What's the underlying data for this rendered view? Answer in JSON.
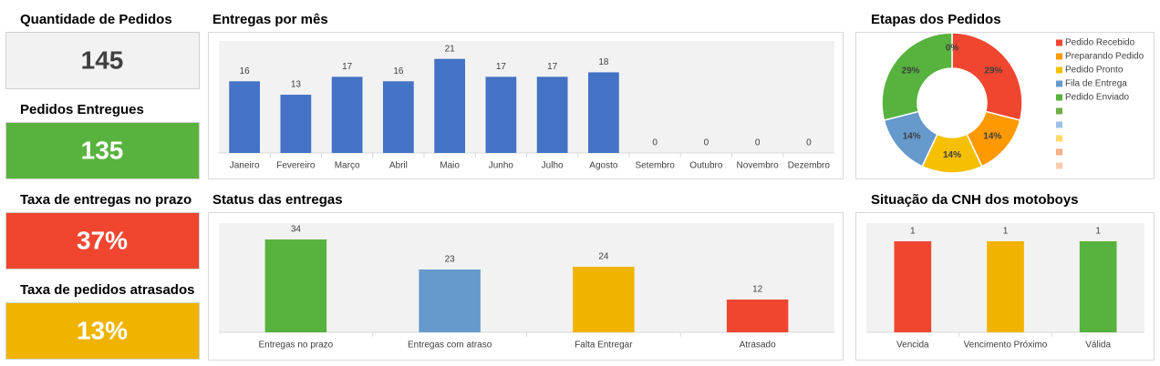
{
  "kpis": [
    {
      "title": "Quantidade de Pedidos",
      "value": "145",
      "color": "#f2f2f2",
      "text_color": "#404040"
    },
    {
      "title": "Pedidos Entregues",
      "value": "135",
      "color": "#57b33e",
      "text_color": "#ffffff"
    },
    {
      "title": "Taxa de entregas no prazo",
      "value": "37%",
      "color": "#f04630",
      "text_color": "#ffffff"
    },
    {
      "title": "Taxa de pedidos atrasados",
      "value": "13%",
      "color": "#f0b400",
      "text_color": "#ffffff"
    }
  ],
  "chart_data": [
    {
      "type": "bar",
      "title": "Entregas por mês",
      "categories": [
        "Janeiro",
        "Fevereiro",
        "Março",
        "Abril",
        "Maio",
        "Junho",
        "Julho",
        "Agosto",
        "Setembro",
        "Outubro",
        "Novembro",
        "Dezembro"
      ],
      "values": [
        16,
        13,
        17,
        16,
        21,
        17,
        17,
        18,
        0,
        0,
        0,
        0
      ],
      "color": "#4472c4",
      "ylim": [
        0,
        25
      ]
    },
    {
      "type": "pie",
      "title": "Etapas dos Pedidos",
      "categories": [
        "Pedido Recebido",
        "Preparando Pedido",
        "Pedido Pronto",
        "Fila de Entrega",
        "Pedido Enviado",
        null,
        null,
        null,
        null,
        null
      ],
      "values": [
        29,
        14,
        14,
        14,
        29,
        0,
        0,
        0,
        0,
        0
      ],
      "value_labels": [
        "29%",
        "14%",
        "14%",
        "14%",
        "29%",
        "0%",
        null,
        null,
        null,
        null
      ],
      "colors": [
        "#f04630",
        "#ff9900",
        "#f5c000",
        "#6699cc",
        "#57b33e",
        "#70ad47",
        "#9dc3e6",
        "#ffd966",
        "#f4b183",
        "#f8cbad"
      ]
    },
    {
      "type": "bar",
      "title": "Status das entregas",
      "categories": [
        "Entregas no prazo",
        "Entregas com atraso",
        "Falta Entregar",
        "Atrasado"
      ],
      "values": [
        34,
        23,
        24,
        12
      ],
      "colors": [
        "#57b33e",
        "#6699cc",
        "#f0b400",
        "#f04630"
      ],
      "ylim": [
        0,
        40
      ]
    },
    {
      "type": "bar",
      "title": "Situação da CNH dos motoboys",
      "categories": [
        "Vencida",
        "Vencimento Próximo",
        "Válida"
      ],
      "values": [
        1,
        1,
        1
      ],
      "colors": [
        "#f04630",
        "#f0b400",
        "#57b33e"
      ],
      "ylim": [
        0,
        1.2
      ]
    }
  ]
}
